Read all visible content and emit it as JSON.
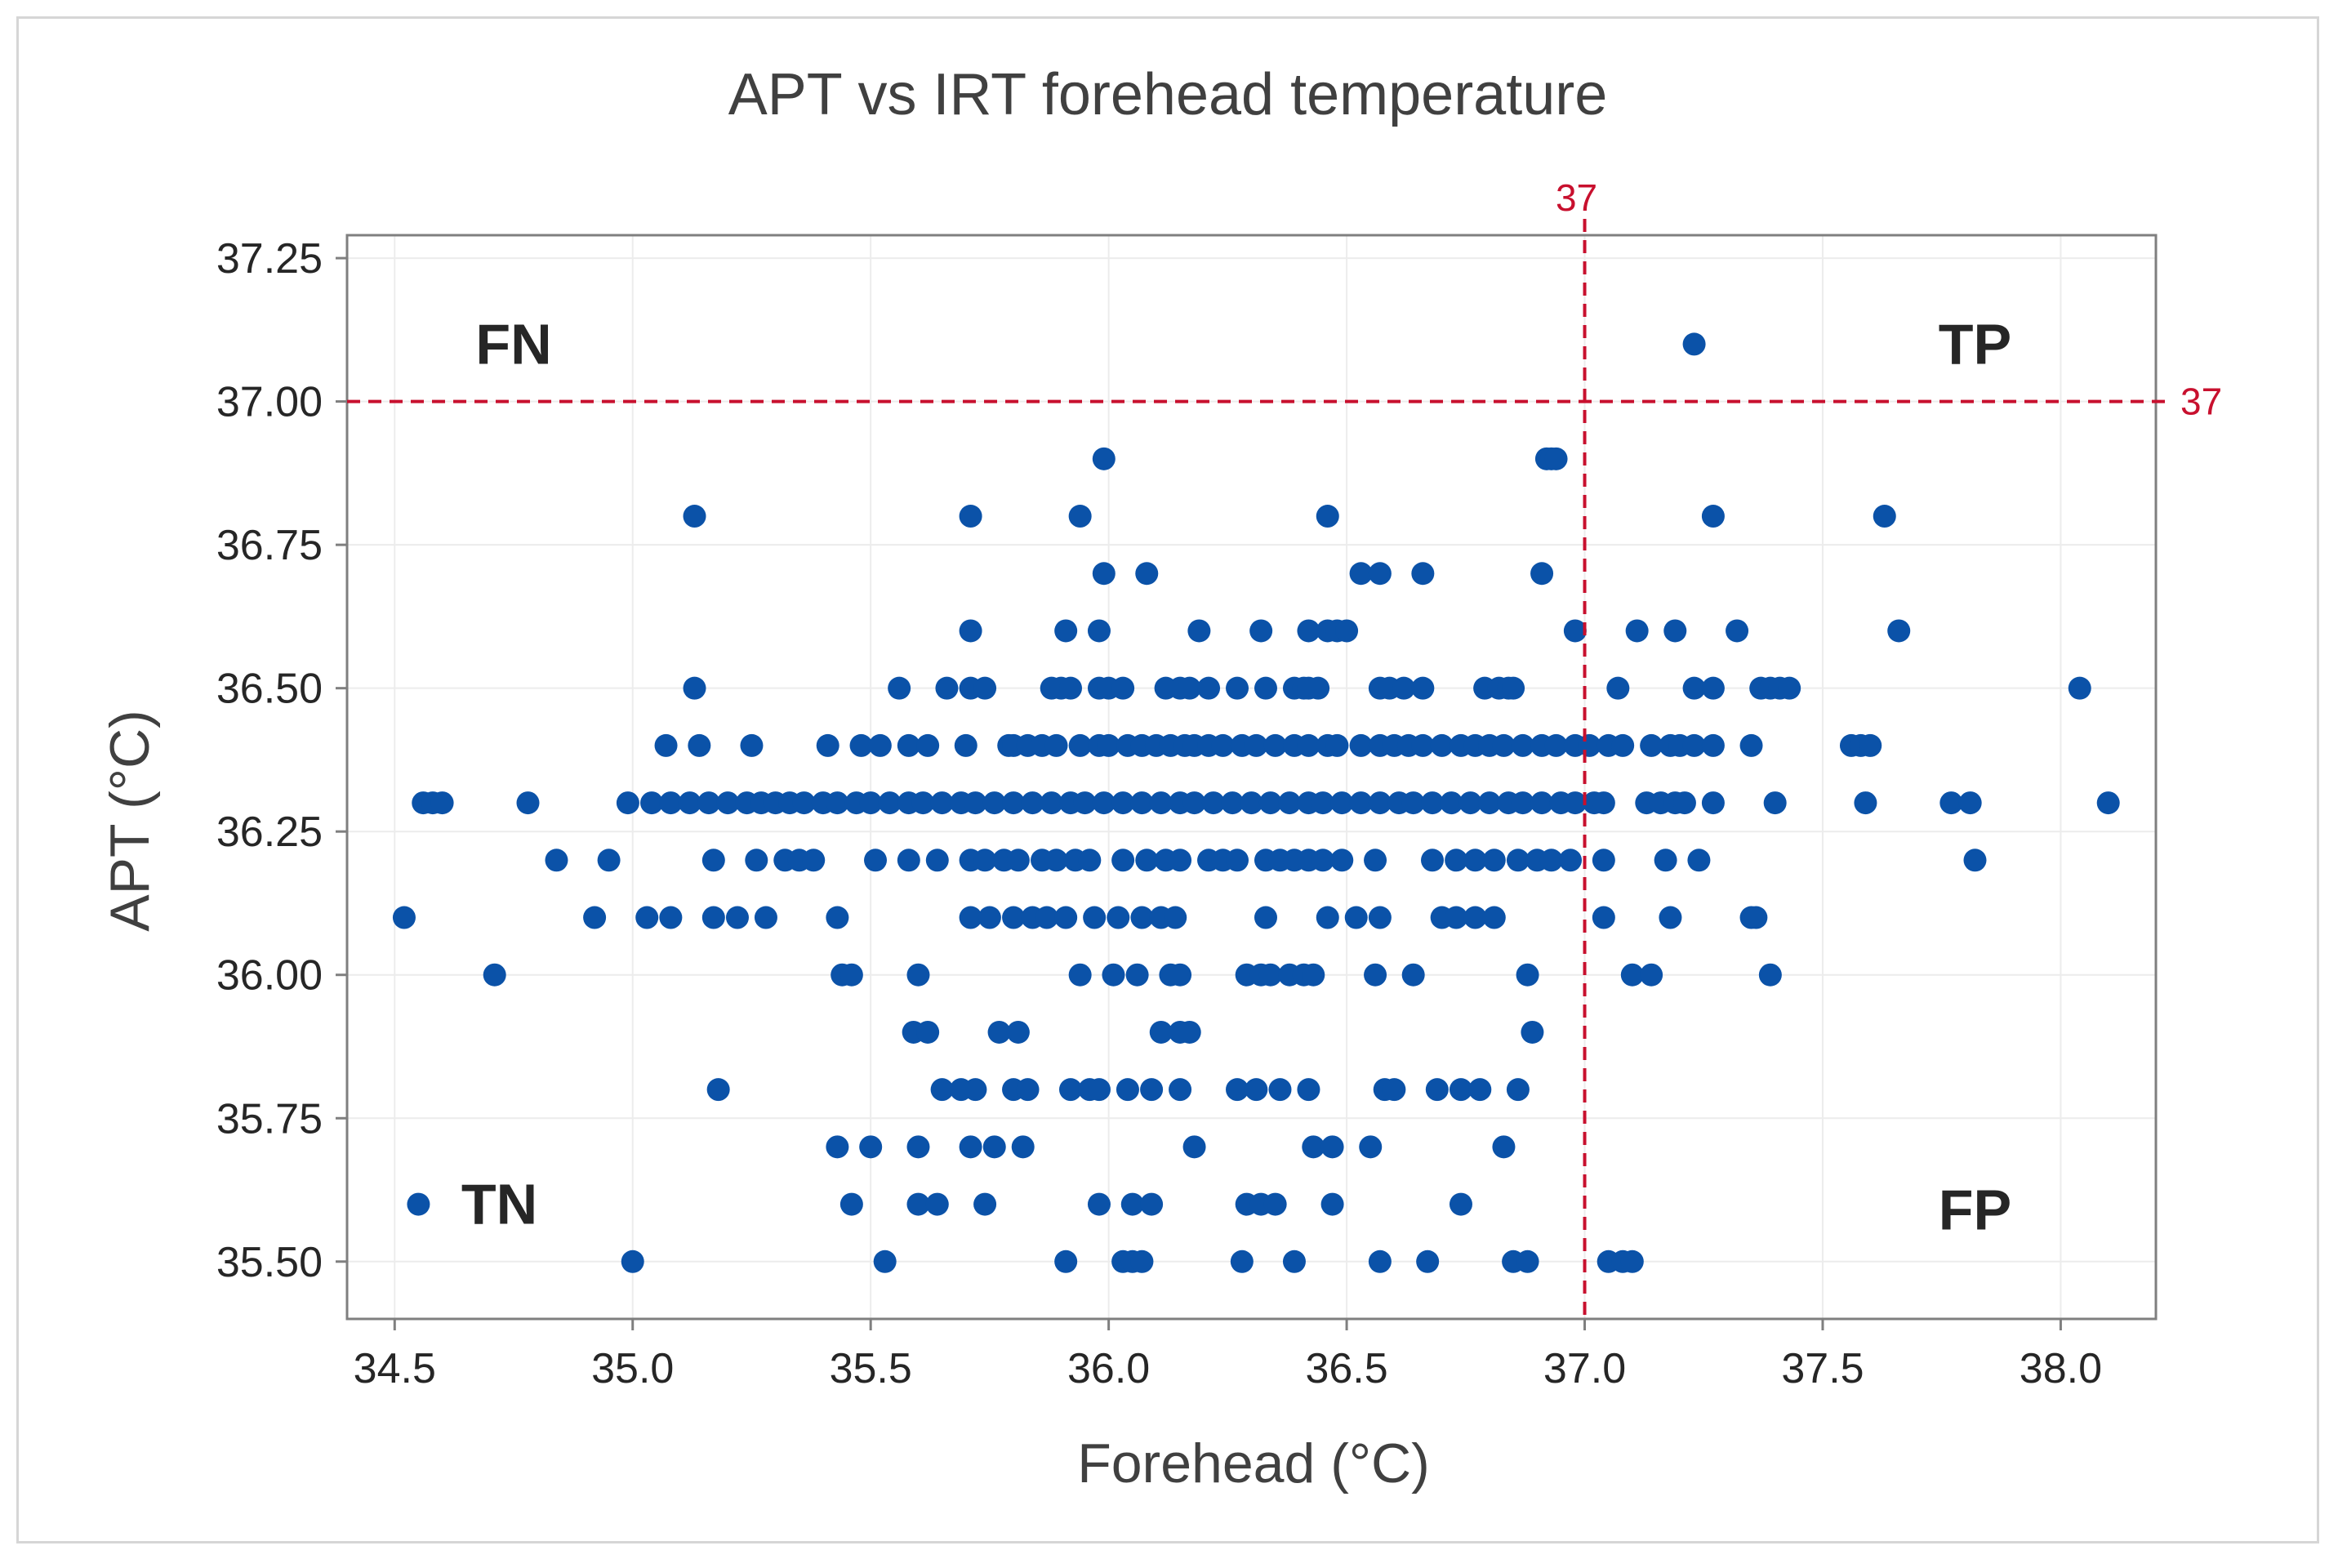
{
  "chart_data": {
    "type": "scatter",
    "title": "APT vs IRT forehead temperature",
    "xlabel": "Forehead (°C)",
    "ylabel": "APT (°C)",
    "xlim": [
      34.4,
      38.2
    ],
    "ylim": [
      35.4,
      37.29
    ],
    "xticks": [
      34.5,
      35.0,
      35.5,
      36.0,
      36.5,
      37.0,
      37.5,
      38.0
    ],
    "xtick_labels": [
      "34.5",
      "35.0",
      "35.5",
      "36.0",
      "36.5",
      "37.0",
      "37.5",
      "38.0"
    ],
    "yticks": [
      35.5,
      35.75,
      36.0,
      36.25,
      36.5,
      36.75,
      37.0,
      37.25
    ],
    "ytick_labels": [
      "35.50",
      "35.75",
      "36.00",
      "36.25",
      "36.50",
      "36.75",
      "37.00",
      "37.25"
    ],
    "grid": true,
    "reference_lines": {
      "vertical": {
        "value": 37,
        "label": "37"
      },
      "horizontal": {
        "value": 37,
        "label": "37"
      }
    },
    "quadrant_labels": {
      "tl": "FN",
      "tr": "TP",
      "bl": "TN",
      "br": "FP"
    },
    "colors": {
      "marker": "#0b52a8",
      "reference": "#c8102e",
      "grid": "#ececec",
      "frame": "#7f7f7f"
    },
    "rows": [
      {
        "y": 37.1,
        "x": [
          37.23
        ]
      },
      {
        "y": 36.9,
        "x": [
          35.99,
          36.92,
          36.93,
          36.94
        ]
      },
      {
        "y": 36.8,
        "x": [
          35.13,
          35.71,
          35.94,
          36.46,
          37.27,
          37.63
        ]
      },
      {
        "y": 36.7,
        "x": [
          35.99,
          36.08,
          36.53,
          36.57,
          36.66,
          36.91
        ]
      },
      {
        "y": 36.6,
        "x": [
          35.71,
          35.91,
          35.98,
          36.19,
          36.32,
          36.42,
          36.46,
          36.48,
          36.5,
          36.98,
          37.11,
          37.19,
          37.32,
          37.66
        ]
      },
      {
        "y": 36.5,
        "x": [
          35.13,
          35.56,
          35.66,
          35.71,
          35.74,
          35.88,
          35.9,
          35.92,
          35.98,
          36.0,
          36.03,
          36.12,
          36.15,
          36.17,
          36.21,
          36.27,
          36.33,
          36.39,
          36.41,
          36.42,
          36.44,
          36.57,
          36.59,
          36.62,
          36.66,
          36.79,
          36.82,
          36.84,
          36.85,
          37.07,
          37.23,
          37.27,
          37.37,
          37.39,
          37.41,
          37.43,
          38.04
        ]
      },
      {
        "y": 36.4,
        "x": [
          35.07,
          35.14,
          35.25,
          35.41,
          35.48,
          35.52,
          35.58,
          35.62,
          35.7,
          35.79,
          35.8,
          35.83,
          35.86,
          35.89,
          35.94,
          35.98,
          36.0,
          36.04,
          36.07,
          36.1,
          36.13,
          36.16,
          36.18,
          36.21,
          36.24,
          36.28,
          36.31,
          36.35,
          36.39,
          36.42,
          36.46,
          36.48,
          36.53,
          36.57,
          36.6,
          36.63,
          36.66,
          36.7,
          36.74,
          36.77,
          36.8,
          36.83,
          36.87,
          36.91,
          36.94,
          36.98,
          37.01,
          37.05,
          37.08,
          37.14,
          37.18,
          37.2,
          37.23,
          37.27,
          37.35,
          37.56,
          37.58,
          37.6
        ]
      },
      {
        "y": 36.3,
        "x": [
          34.56,
          34.58,
          34.6,
          34.78,
          34.99,
          35.04,
          35.08,
          35.12,
          35.16,
          35.2,
          35.24,
          35.27,
          35.3,
          35.33,
          35.36,
          35.4,
          35.43,
          35.47,
          35.5,
          35.54,
          35.58,
          35.61,
          35.65,
          35.69,
          35.72,
          35.76,
          35.8,
          35.84,
          35.88,
          35.92,
          35.95,
          35.99,
          36.03,
          36.07,
          36.11,
          36.15,
          36.18,
          36.22,
          36.26,
          36.3,
          36.34,
          36.38,
          36.42,
          36.45,
          36.49,
          36.53,
          36.57,
          36.61,
          36.64,
          36.68,
          36.72,
          36.76,
          36.8,
          36.84,
          36.87,
          36.91,
          36.95,
          36.98,
          37.02,
          37.04,
          37.13,
          37.16,
          37.19,
          37.21,
          37.27,
          37.4,
          37.59,
          37.77,
          37.81,
          38.1
        ]
      },
      {
        "y": 36.2,
        "x": [
          34.84,
          34.95,
          35.17,
          35.26,
          35.32,
          35.35,
          35.38,
          35.51,
          35.58,
          35.64,
          35.71,
          35.74,
          35.78,
          35.81,
          35.86,
          35.89,
          35.93,
          35.96,
          36.03,
          36.08,
          36.12,
          36.15,
          36.21,
          36.24,
          36.27,
          36.33,
          36.36,
          36.39,
          36.42,
          36.45,
          36.49,
          36.56,
          36.68,
          36.73,
          36.77,
          36.81,
          36.86,
          36.9,
          36.93,
          36.97,
          37.04,
          37.17,
          37.24,
          37.82
        ]
      },
      {
        "y": 36.1,
        "x": [
          34.52,
          34.92,
          35.03,
          35.08,
          35.17,
          35.22,
          35.28,
          35.43,
          35.71,
          35.75,
          35.8,
          35.84,
          35.87,
          35.91,
          35.97,
          36.02,
          36.07,
          36.11,
          36.14,
          36.33,
          36.46,
          36.52,
          36.57,
          36.7,
          36.73,
          36.77,
          36.81,
          37.04,
          37.18,
          37.35,
          37.36
        ]
      },
      {
        "y": 36.0,
        "x": [
          34.71,
          35.44,
          35.46,
          35.6,
          35.94,
          36.01,
          36.06,
          36.13,
          36.15,
          36.29,
          36.32,
          36.34,
          36.38,
          36.41,
          36.43,
          36.56,
          36.64,
          36.88,
          37.1,
          37.14,
          37.39
        ]
      },
      {
        "y": 35.9,
        "x": [
          35.59,
          35.62,
          35.77,
          35.81,
          36.11,
          36.15,
          36.17,
          36.89
        ]
      },
      {
        "y": 35.8,
        "x": [
          35.18,
          35.65,
          35.69,
          35.72,
          35.8,
          35.83,
          35.92,
          35.96,
          35.98,
          36.04,
          36.09,
          36.15,
          36.27,
          36.31,
          36.36,
          36.42,
          36.58,
          36.6,
          36.69,
          36.74,
          36.78,
          36.86
        ]
      },
      {
        "y": 35.7,
        "x": [
          35.43,
          35.5,
          35.6,
          35.71,
          35.76,
          35.82,
          36.18,
          36.43,
          36.47,
          36.55,
          36.83
        ]
      },
      {
        "y": 35.6,
        "x": [
          34.55,
          35.46,
          35.6,
          35.64,
          35.74,
          35.98,
          36.05,
          36.09,
          36.29,
          36.32,
          36.35,
          36.47,
          36.74
        ]
      },
      {
        "y": 35.5,
        "x": [
          35.0,
          35.53,
          35.91,
          36.03,
          36.05,
          36.07,
          36.28,
          36.39,
          36.57,
          36.67,
          36.85,
          36.88,
          37.05,
          37.08,
          37.1
        ]
      }
    ]
  }
}
